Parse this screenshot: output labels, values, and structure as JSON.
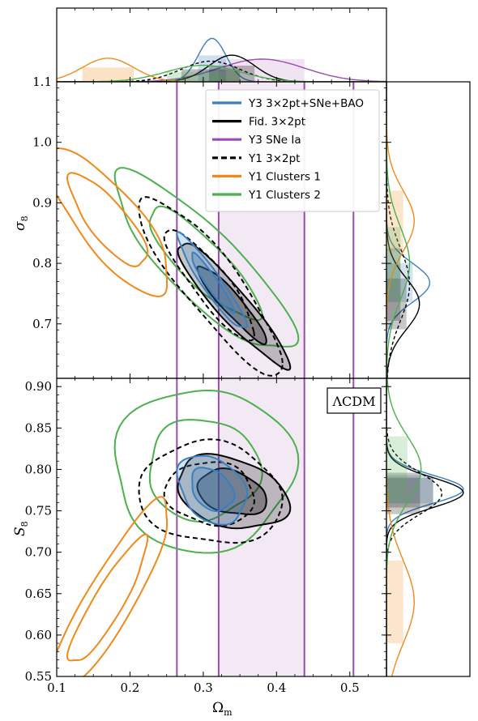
{
  "chart_data": {
    "type": "contour",
    "x_axis": {
      "label_main": "Ω",
      "label_sub": "m",
      "lim": [
        0.1,
        0.55
      ],
      "ticks": [
        0.1,
        0.2,
        0.3,
        0.4,
        0.5
      ],
      "tick_labels": [
        "0.1",
        "0.2",
        "0.3",
        "0.4",
        "0.5"
      ]
    },
    "panels": [
      {
        "name": "sigma8",
        "ylabel_main": "σ",
        "ylabel_sub": "8",
        "ylim": [
          0.61,
          1.1
        ],
        "yticks": [
          0.7,
          0.8,
          0.9,
          1.0,
          1.1
        ],
        "ytick_labels": [
          "0.7",
          "0.8",
          "0.9",
          "1.0",
          "1.1"
        ]
      },
      {
        "name": "S8",
        "ylabel_main": "S",
        "ylabel_sub": "8",
        "ylim": [
          0.55,
          0.91
        ],
        "yticks": [
          0.55,
          0.6,
          0.65,
          0.7,
          0.75,
          0.8,
          0.85,
          0.9
        ],
        "ytick_labels": [
          "0.55",
          "0.60",
          "0.65",
          "0.70",
          "0.75",
          "0.80",
          "0.85",
          "0.90"
        ],
        "annotation": "ΛCDM"
      }
    ],
    "legend": {
      "placement": "top-right of upper panel",
      "entries": [
        {
          "label": "Y3 3×2pt+SNe+BAO",
          "color": "#3a7fbf",
          "style": "solid"
        },
        {
          "label": "Fid. 3×2pt",
          "color": "#000000",
          "style": "solid"
        },
        {
          "label": "Y3 SNe Ia",
          "color": "#9b4bb0",
          "style": "solid"
        },
        {
          "label": "Y1 3×2pt",
          "color": "#000000",
          "style": "dashed"
        },
        {
          "label": "Y1 Clusters 1",
          "color": "#f0891a",
          "style": "solid"
        },
        {
          "label": "Y1 Clusters 2",
          "color": "#4cb04c",
          "style": "solid"
        }
      ]
    },
    "series": [
      {
        "name": "Y3 3×2pt+SNe+BAO",
        "color": "#3a7fbf",
        "filled": true,
        "dashed": false,
        "om": [
          0.312,
          0.019
        ],
        "s8": [
          0.776,
          0.017
        ],
        "sigma8": [
          0.768,
          0.032
        ],
        "rho_sigma8": -0.94,
        "rho_s8": -0.3
      },
      {
        "name": "Fid. 3×2pt",
        "color": "#000000",
        "filled": true,
        "dashed": false,
        "om": [
          0.339,
          0.031
        ],
        "s8": [
          0.772,
          0.018
        ],
        "sigma8": [
          0.733,
          0.042
        ],
        "rho_sigma8": -0.93,
        "rho_s8": -0.3
      },
      {
        "name": "Y1 3×2pt",
        "color": "#000000",
        "filled": false,
        "dashed": true,
        "om": [
          0.31,
          0.04
        ],
        "s8": [
          0.771,
          0.025
        ],
        "sigma8": [
          0.765,
          0.06
        ],
        "rho_sigma8": -0.88,
        "rho_s8": -0.1
      },
      {
        "name": "Y1 Clusters 1",
        "color": "#f0891a",
        "filled": false,
        "dashed": false,
        "om": [
          0.17,
          0.035
        ],
        "s8": [
          0.64,
          0.05
        ],
        "sigma8": [
          0.87,
          0.05
        ],
        "rho_sigma8": -0.8,
        "rho_s8": 0.9
      },
      {
        "name": "Y1 Clusters 2",
        "color": "#4cb04c",
        "filled": false,
        "dashed": false,
        "om": [
          0.3,
          0.05
        ],
        "s8": [
          0.8,
          0.04
        ],
        "sigma8": [
          0.8,
          0.06
        ],
        "rho_sigma8": -0.85,
        "rho_s8": 0.0
      }
    ],
    "sne_band": {
      "name": "Y3 SNe Ia",
      "color": "#9b4bb0",
      "inner": [
        0.321,
        0.438
      ],
      "outer": [
        0.264,
        0.505
      ],
      "peak": 0.38,
      "sigma": 0.058
    }
  }
}
